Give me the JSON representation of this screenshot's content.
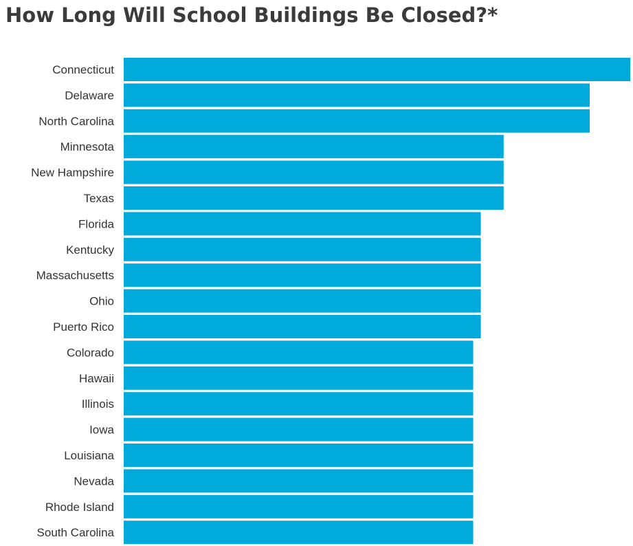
{
  "chart_data": {
    "type": "bar",
    "orientation": "horizontal",
    "title": "How Long Will School Buildings Be Closed?*",
    "xlabel": "",
    "ylabel": "",
    "categories": [
      "Connecticut",
      "Delaware",
      "North Carolina",
      "Minnesota",
      "New Hampshire",
      "Texas",
      "Florida",
      "Kentucky",
      "Massachusetts",
      "Ohio",
      "Puerto Rico",
      "Colorado",
      "Hawaii",
      "Illinois",
      "Iowa",
      "Louisiana",
      "Nevada",
      "Rhode Island",
      "South Carolina"
    ],
    "values": [
      100,
      92,
      92,
      75,
      75,
      75,
      70.5,
      70.5,
      70.5,
      70.5,
      70.5,
      69,
      69,
      69,
      69,
      69,
      69,
      69,
      69
    ],
    "xlim": [
      0,
      100
    ],
    "grid": false,
    "legend": "none",
    "bar_color": "#00aadb"
  }
}
